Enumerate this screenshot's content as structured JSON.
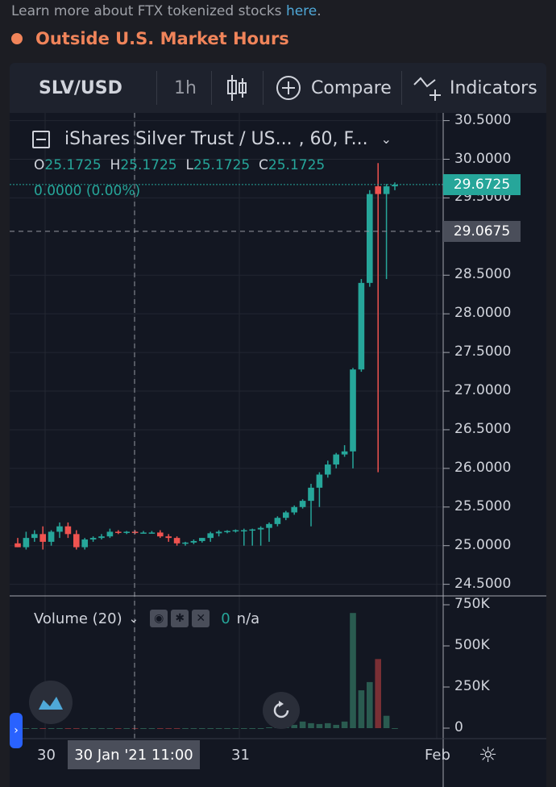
{
  "banner": {
    "text": "Learn more about FTX tokenized stocks ",
    "link": "here",
    "suffix": "."
  },
  "status": {
    "label": "Outside U.S. Market Hours"
  },
  "toolbar": {
    "symbol": "SLV/USD",
    "interval": "1h",
    "compare": "Compare",
    "indicators": "Indicators"
  },
  "legend": {
    "title": "iShares Silver Trust / US...",
    "params": ", 60, F..."
  },
  "ohlc": {
    "o_label": "O",
    "o": "25.1725",
    "h_label": "H",
    "h": "25.1725",
    "l_label": "L",
    "l": "25.1725",
    "c_label": "C",
    "c": "25.1725",
    "change": "0.0000 (0.00%)"
  },
  "price_axis": {
    "labels": [
      "30.5000",
      "30.0000",
      "29.5000",
      "28.5000",
      "28.0000",
      "27.5000",
      "27.0000",
      "26.5000",
      "26.0000",
      "25.5000",
      "25.0000",
      "24.5000"
    ],
    "last_price": "29.6725",
    "crosshair_price": "29.0675"
  },
  "volume": {
    "legend": "Volume (20)",
    "value": "0",
    "na": "n/a",
    "axis_labels": [
      "750K",
      "500K",
      "250K",
      "0"
    ]
  },
  "time_axis": {
    "labels": [
      "30",
      "31",
      "Feb"
    ],
    "crosshair": "30 Jan '21   11:00"
  },
  "colors": {
    "up": "#26a69a",
    "down": "#ef5350",
    "bg": "#131722",
    "accent": "#f0845a"
  },
  "chart_data": {
    "type": "candlestick",
    "interval": "1h",
    "ylim": [
      24.5,
      30.5
    ],
    "volume_ylim": [
      0,
      750000
    ],
    "candles": [
      {
        "o": 25.03,
        "h": 25.1,
        "l": 24.98,
        "c": 24.98
      },
      {
        "o": 24.98,
        "h": 25.18,
        "l": 24.95,
        "c": 25.1
      },
      {
        "o": 25.1,
        "h": 25.2,
        "l": 25.05,
        "c": 25.15
      },
      {
        "o": 25.15,
        "h": 25.25,
        "l": 24.95,
        "c": 25.05
      },
      {
        "o": 25.05,
        "h": 25.2,
        "l": 25.0,
        "c": 25.18
      },
      {
        "o": 25.18,
        "h": 25.3,
        "l": 25.1,
        "c": 25.25
      },
      {
        "o": 25.25,
        "h": 25.3,
        "l": 25.1,
        "c": 25.15
      },
      {
        "o": 25.15,
        "h": 25.2,
        "l": 24.95,
        "c": 24.98
      },
      {
        "o": 24.98,
        "h": 25.1,
        "l": 24.95,
        "c": 25.08
      },
      {
        "o": 25.08,
        "h": 25.12,
        "l": 25.05,
        "c": 25.1
      },
      {
        "o": 25.1,
        "h": 25.15,
        "l": 25.08,
        "c": 25.12
      },
      {
        "o": 25.12,
        "h": 25.22,
        "l": 25.1,
        "c": 25.18
      },
      {
        "o": 25.18,
        "h": 25.2,
        "l": 25.15,
        "c": 25.17
      },
      {
        "o": 25.17,
        "h": 25.19,
        "l": 25.15,
        "c": 25.18
      },
      {
        "o": 25.18,
        "h": 25.2,
        "l": 25.15,
        "c": 25.17
      },
      {
        "o": 25.17,
        "h": 25.19,
        "l": 25.16,
        "c": 25.17
      },
      {
        "o": 25.17,
        "h": 25.19,
        "l": 25.16,
        "c": 25.17
      },
      {
        "o": 25.17,
        "h": 25.2,
        "l": 25.1,
        "c": 25.12
      },
      {
        "o": 25.12,
        "h": 25.15,
        "l": 25.05,
        "c": 25.1
      },
      {
        "o": 25.1,
        "h": 25.12,
        "l": 25.0,
        "c": 25.03
      },
      {
        "o": 25.03,
        "h": 25.05,
        "l": 25.0,
        "c": 25.04
      },
      {
        "o": 25.04,
        "h": 25.08,
        "l": 25.02,
        "c": 25.06
      },
      {
        "o": 25.06,
        "h": 25.1,
        "l": 25.04,
        "c": 25.1
      },
      {
        "o": 25.1,
        "h": 25.18,
        "l": 25.05,
        "c": 25.16
      },
      {
        "o": 25.16,
        "h": 25.2,
        "l": 25.12,
        "c": 25.18
      },
      {
        "o": 25.18,
        "h": 25.2,
        "l": 25.16,
        "c": 25.19
      },
      {
        "o": 25.19,
        "h": 25.21,
        "l": 25.17,
        "c": 25.2
      },
      {
        "o": 25.2,
        "h": 25.22,
        "l": 25.0,
        "c": 25.2
      },
      {
        "o": 25.2,
        "h": 25.22,
        "l": 25.0,
        "c": 25.21
      },
      {
        "o": 25.21,
        "h": 25.25,
        "l": 25.0,
        "c": 25.23
      },
      {
        "o": 25.23,
        "h": 25.3,
        "l": 25.05,
        "c": 25.28
      },
      {
        "o": 25.28,
        "h": 25.38,
        "l": 25.25,
        "c": 25.36
      },
      {
        "o": 25.36,
        "h": 25.45,
        "l": 25.33,
        "c": 25.43
      },
      {
        "o": 25.43,
        "h": 25.52,
        "l": 25.4,
        "c": 25.5
      },
      {
        "o": 25.5,
        "h": 25.6,
        "l": 25.48,
        "c": 25.58
      },
      {
        "o": 25.58,
        "h": 25.8,
        "l": 25.25,
        "c": 25.75
      },
      {
        "o": 25.75,
        "h": 25.95,
        "l": 25.5,
        "c": 25.92
      },
      {
        "o": 25.92,
        "h": 26.1,
        "l": 25.88,
        "c": 26.05
      },
      {
        "o": 26.05,
        "h": 26.2,
        "l": 26.0,
        "c": 26.18
      },
      {
        "o": 26.18,
        "h": 26.3,
        "l": 26.15,
        "c": 26.22
      },
      {
        "o": 26.22,
        "h": 27.3,
        "l": 26.0,
        "c": 27.28
      },
      {
        "o": 27.28,
        "h": 28.45,
        "l": 27.25,
        "c": 28.4
      },
      {
        "o": 28.4,
        "h": 29.6,
        "l": 28.35,
        "c": 29.55
      },
      {
        "o": 29.65,
        "h": 29.95,
        "l": 25.95,
        "c": 29.55
      },
      {
        "o": 29.55,
        "h": 29.68,
        "l": 28.45,
        "c": 29.65
      },
      {
        "o": 29.65,
        "h": 29.7,
        "l": 29.6,
        "c": 29.67
      }
    ],
    "volume": [
      0,
      0,
      0,
      0,
      0,
      0,
      0,
      0,
      0,
      0,
      0,
      0,
      0,
      0,
      0,
      0,
      0,
      0,
      0,
      0,
      0,
      0,
      0,
      0,
      0,
      0,
      0,
      0,
      0,
      0,
      5000,
      10000,
      15000,
      20000,
      40000,
      30000,
      25000,
      30000,
      20000,
      40000,
      700000,
      230000,
      280000,
      420000,
      75000,
      0
    ]
  }
}
